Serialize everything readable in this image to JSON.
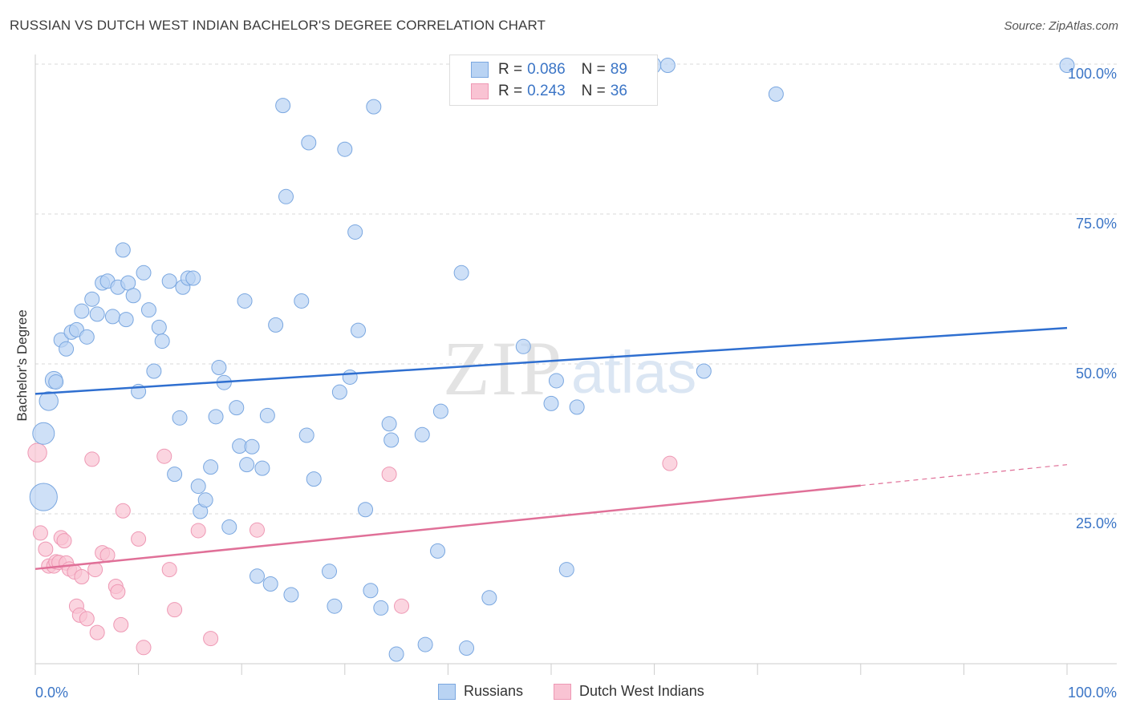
{
  "title": "RUSSIAN VS DUTCH WEST INDIAN BACHELOR'S DEGREE CORRELATION CHART",
  "source": "Source: ZipAtlas.com",
  "watermark": {
    "zip": "ZIP",
    "atlas": "atlas"
  },
  "legend_top": [
    {
      "r_label": "R =",
      "r_value": "0.086",
      "n_label": "N =",
      "n_value": "89",
      "fill": "#b9d3f3",
      "stroke": "#7aa7e0"
    },
    {
      "r_label": "R =",
      "r_value": "0.243",
      "n_label": "N =",
      "n_value": "36",
      "fill": "#f9c3d3",
      "stroke": "#ee98b4"
    }
  ],
  "legend_bottom": [
    {
      "label": "Russians",
      "fill": "#b9d3f3",
      "stroke": "#7aa7e0"
    },
    {
      "label": "Dutch West Indians",
      "fill": "#f9c3d3",
      "stroke": "#ee98b4"
    }
  ],
  "colors": {
    "russians_fill": "#b9d3f3",
    "russians_stroke": "#7aa7e0",
    "russians_line": "#2f6fd0",
    "dutch_fill": "#f9c3d3",
    "dutch_stroke": "#ee98b4",
    "dutch_line": "#e07098",
    "tick_label": "#3b75c6",
    "grid": "#d9d9d9"
  },
  "chart_data": {
    "type": "scatter",
    "xlabel": "",
    "ylabel": "Bachelor's Degree",
    "xlim": [
      0,
      100
    ],
    "ylim": [
      0,
      100
    ],
    "x_tick_labels": [
      {
        "value": 0,
        "label": "0.0%"
      },
      {
        "value": 100,
        "label": "100.0%"
      }
    ],
    "y_tick_labels": [
      {
        "value": 25,
        "label": "25.0%"
      },
      {
        "value": 50,
        "label": "50.0%"
      },
      {
        "value": 75,
        "label": "75.0%"
      },
      {
        "value": 100,
        "label": "100.0%"
      }
    ],
    "grid": true,
    "series": [
      {
        "name": "Russians",
        "trend": {
          "x": [
            0,
            100
          ],
          "y": [
            45.0,
            56.0
          ],
          "dashed_from": null
        },
        "points": [
          [
            0.8,
            27.8,
            1.9
          ],
          [
            0.8,
            38.4,
            1.5
          ],
          [
            1.3,
            43.8,
            1.3
          ],
          [
            1.8,
            47.3,
            1.2
          ],
          [
            2.0,
            47.0,
            1.0
          ],
          [
            2.5,
            54.0,
            1.0
          ],
          [
            3.0,
            52.5,
            1.0
          ],
          [
            3.5,
            55.3,
            1.0
          ],
          [
            4.0,
            55.7,
            1.0
          ],
          [
            4.5,
            58.8,
            1.0
          ],
          [
            5.0,
            54.5,
            1.0
          ],
          [
            5.5,
            60.8,
            1.0
          ],
          [
            6.0,
            58.3,
            1.0
          ],
          [
            6.5,
            63.5,
            1.0
          ],
          [
            7.0,
            63.8,
            1.0
          ],
          [
            7.5,
            57.9,
            1.0
          ],
          [
            8.0,
            62.8,
            1.0
          ],
          [
            8.5,
            69.0,
            1.0
          ],
          [
            8.8,
            57.4,
            1.0
          ],
          [
            9.0,
            63.5,
            1.0
          ],
          [
            9.5,
            61.4,
            1.0
          ],
          [
            10.0,
            45.4,
            1.0
          ],
          [
            10.5,
            65.2,
            1.0
          ],
          [
            11.0,
            59.0,
            1.0
          ],
          [
            11.5,
            48.8,
            1.0
          ],
          [
            12.0,
            56.1,
            1.0
          ],
          [
            12.3,
            53.8,
            1.0
          ],
          [
            13.0,
            63.8,
            1.0
          ],
          [
            13.5,
            31.6,
            1.0
          ],
          [
            14.0,
            41.0,
            1.0
          ],
          [
            14.3,
            62.8,
            1.0
          ],
          [
            14.8,
            64.3,
            1.0
          ],
          [
            15.3,
            64.3,
            1.0
          ],
          [
            15.8,
            29.6,
            1.0
          ],
          [
            16.0,
            25.4,
            1.0
          ],
          [
            16.5,
            27.3,
            1.0
          ],
          [
            17.0,
            32.8,
            1.0
          ],
          [
            17.5,
            41.2,
            1.0
          ],
          [
            17.8,
            49.4,
            1.0
          ],
          [
            18.3,
            46.9,
            1.0
          ],
          [
            18.8,
            22.8,
            1.0
          ],
          [
            19.5,
            42.7,
            1.0
          ],
          [
            19.8,
            36.3,
            1.0
          ],
          [
            20.3,
            60.5,
            1.0
          ],
          [
            20.5,
            33.2,
            1.0
          ],
          [
            21.0,
            36.2,
            1.0
          ],
          [
            21.5,
            14.6,
            1.0
          ],
          [
            22.0,
            32.6,
            1.0
          ],
          [
            22.5,
            41.4,
            1.0
          ],
          [
            22.8,
            13.3,
            1.0
          ],
          [
            23.3,
            56.5,
            1.0
          ],
          [
            24.0,
            93.1,
            1.0
          ],
          [
            24.3,
            77.9,
            1.0
          ],
          [
            24.8,
            11.5,
            1.0
          ],
          [
            25.8,
            60.5,
            1.0
          ],
          [
            26.3,
            38.1,
            1.0
          ],
          [
            26.5,
            86.9,
            1.0
          ],
          [
            27.0,
            30.8,
            1.0
          ],
          [
            28.5,
            15.4,
            1.0
          ],
          [
            29.0,
            9.6,
            1.0
          ],
          [
            29.5,
            45.3,
            1.0
          ],
          [
            30.0,
            85.8,
            1.0
          ],
          [
            30.5,
            47.8,
            1.0
          ],
          [
            31.0,
            72.0,
            1.0
          ],
          [
            31.3,
            55.6,
            1.0
          ],
          [
            32.0,
            25.7,
            1.0
          ],
          [
            32.5,
            12.2,
            1.0
          ],
          [
            32.8,
            92.9,
            1.0
          ],
          [
            33.5,
            9.3,
            1.0
          ],
          [
            34.3,
            40.0,
            1.0
          ],
          [
            34.5,
            37.3,
            1.0
          ],
          [
            35.0,
            1.6,
            1.0
          ],
          [
            37.5,
            38.2,
            1.0
          ],
          [
            37.8,
            3.2,
            1.0
          ],
          [
            39.0,
            18.8,
            1.0
          ],
          [
            39.3,
            42.1,
            1.0
          ],
          [
            41.3,
            65.2,
            1.0
          ],
          [
            41.8,
            2.6,
            1.0
          ],
          [
            44.0,
            11.0,
            1.0
          ],
          [
            47.3,
            52.9,
            1.0
          ],
          [
            50.0,
            43.4,
            1.0
          ],
          [
            50.5,
            47.2,
            1.0
          ],
          [
            51.5,
            15.7,
            1.0
          ],
          [
            52.5,
            42.8,
            1.0
          ],
          [
            59.8,
            99.8,
            1.2
          ],
          [
            61.3,
            99.8,
            1.0
          ],
          [
            64.8,
            48.8,
            1.0
          ],
          [
            71.8,
            95.0,
            1.0
          ],
          [
            100.0,
            99.8,
            1.0
          ]
        ]
      },
      {
        "name": "Dutch West Indians",
        "trend": {
          "x": [
            0,
            100
          ],
          "y": [
            15.8,
            33.2
          ],
          "dashed_from": 80
        },
        "points": [
          [
            0.2,
            35.2,
            1.3
          ],
          [
            0.5,
            21.8,
            1.0
          ],
          [
            1.0,
            19.1,
            1.0
          ],
          [
            1.3,
            16.3,
            1.0
          ],
          [
            1.8,
            16.3,
            1.0
          ],
          [
            2.0,
            17.0,
            1.0
          ],
          [
            2.3,
            16.9,
            1.0
          ],
          [
            2.5,
            21.0,
            1.0
          ],
          [
            2.8,
            20.5,
            1.0
          ],
          [
            3.0,
            16.8,
            1.0
          ],
          [
            3.3,
            15.8,
            1.0
          ],
          [
            3.8,
            15.3,
            1.0
          ],
          [
            4.0,
            9.6,
            1.0
          ],
          [
            4.3,
            8.1,
            1.0
          ],
          [
            4.5,
            14.5,
            1.0
          ],
          [
            5.0,
            7.5,
            1.0
          ],
          [
            5.5,
            34.1,
            1.0
          ],
          [
            5.8,
            15.7,
            1.0
          ],
          [
            6.0,
            5.2,
            1.0
          ],
          [
            6.5,
            18.5,
            1.0
          ],
          [
            7.0,
            18.1,
            1.0
          ],
          [
            7.8,
            12.9,
            1.0
          ],
          [
            8.0,
            12.0,
            1.0
          ],
          [
            8.3,
            6.5,
            1.0
          ],
          [
            8.5,
            25.5,
            1.0
          ],
          [
            10.0,
            20.8,
            1.0
          ],
          [
            10.5,
            2.7,
            1.0
          ],
          [
            12.5,
            34.6,
            1.0
          ],
          [
            13.0,
            15.7,
            1.0
          ],
          [
            13.5,
            9.0,
            1.0
          ],
          [
            15.8,
            22.2,
            1.0
          ],
          [
            17.0,
            4.2,
            1.0
          ],
          [
            21.5,
            22.3,
            1.0
          ],
          [
            34.3,
            31.6,
            1.0
          ],
          [
            35.5,
            9.6,
            1.0
          ],
          [
            61.5,
            33.4,
            1.0
          ]
        ]
      }
    ]
  }
}
